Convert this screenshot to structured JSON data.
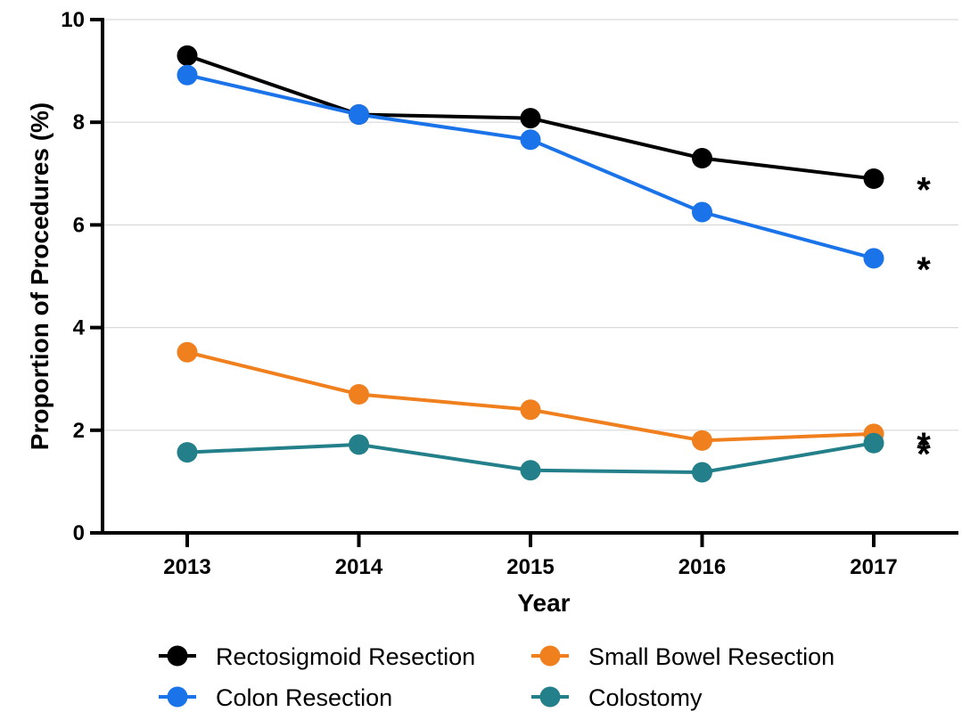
{
  "chart_data": {
    "type": "line",
    "title": "",
    "xlabel": "Year",
    "ylabel": "Proportion of Procedures (%)",
    "ylim": [
      0,
      10
    ],
    "yticks": [
      "0",
      "2",
      "4",
      "6",
      "8",
      "10"
    ],
    "categories": [
      "2013",
      "2014",
      "2015",
      "2016",
      "2017"
    ],
    "grid": "horizontal",
    "legend_position": "bottom",
    "series": [
      {
        "name": "Rectosigmoid Resection",
        "color": "#000000",
        "values": [
          9.3,
          8.15,
          8.08,
          7.3,
          6.9
        ],
        "annotation": "*"
      },
      {
        "name": "Colon Resection",
        "color": "#1a73e8",
        "values": [
          8.92,
          8.15,
          7.66,
          6.25,
          5.35
        ],
        "annotation": "*"
      },
      {
        "name": "Small Bowel Resection",
        "color": "#f07f1e",
        "values": [
          3.52,
          2.7,
          2.4,
          1.8,
          1.93
        ],
        "annotation": "*"
      },
      {
        "name": "Colostomy",
        "color": "#23808b",
        "values": [
          1.57,
          1.72,
          1.22,
          1.18,
          1.75
        ],
        "annotation": "*"
      }
    ]
  }
}
